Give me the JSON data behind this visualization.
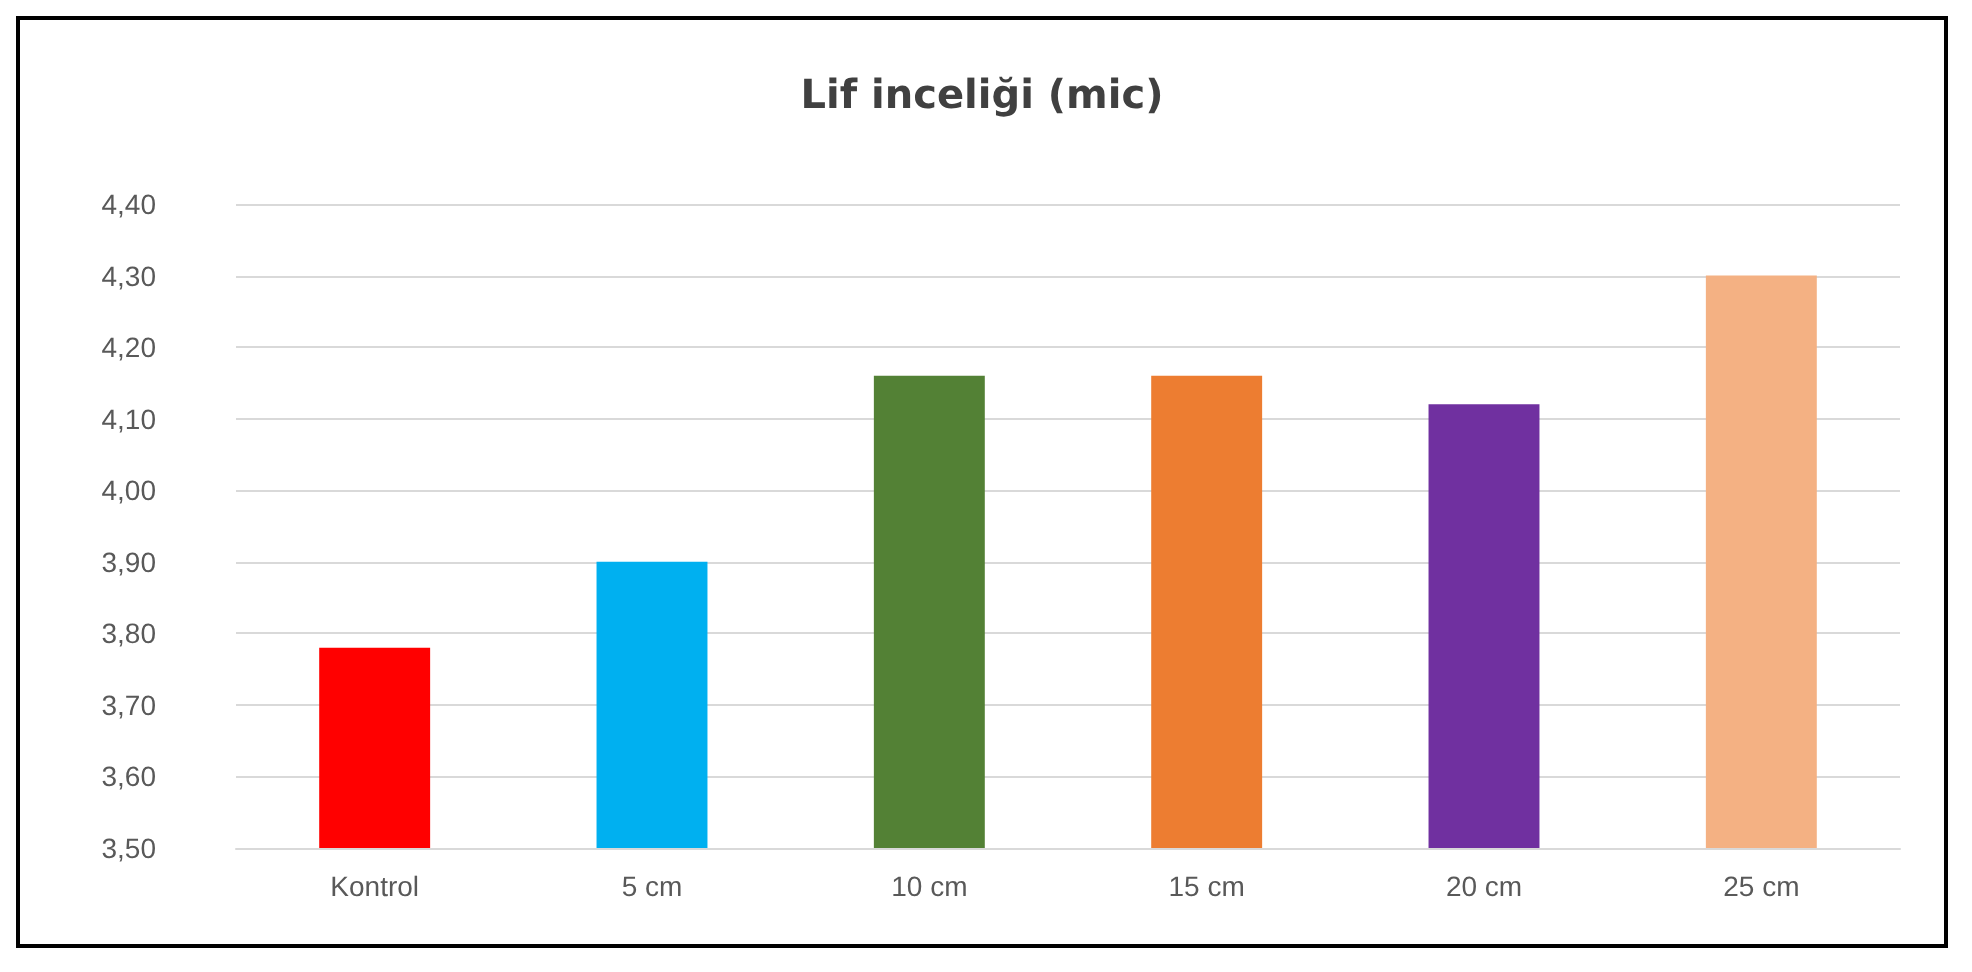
{
  "chart_data": {
    "type": "bar",
    "title": "Lif inceliği (mic)",
    "categories": [
      "Kontrol",
      "5 cm",
      "10 cm",
      "15 cm",
      "20 cm",
      "25 cm"
    ],
    "values": [
      3.78,
      3.9,
      4.16,
      4.16,
      4.12,
      4.3
    ],
    "colors": [
      "#ff0000",
      "#00b0f0",
      "#538135",
      "#ed7d31",
      "#7030a0",
      "#f4b183"
    ],
    "ylim": [
      3.5,
      4.4
    ],
    "yticks": [
      {
        "value": 3.5,
        "label": "3,50"
      },
      {
        "value": 3.6,
        "label": "3,60"
      },
      {
        "value": 3.7,
        "label": "3,70"
      },
      {
        "value": 3.8,
        "label": "3,80"
      },
      {
        "value": 3.9,
        "label": "3,90"
      },
      {
        "value": 4.0,
        "label": "4,00"
      },
      {
        "value": 4.1,
        "label": "4,10"
      },
      {
        "value": 4.2,
        "label": "4,20"
      },
      {
        "value": 4.3,
        "label": "4,30"
      },
      {
        "value": 4.4,
        "label": "4,40"
      }
    ],
    "grid": "y"
  }
}
